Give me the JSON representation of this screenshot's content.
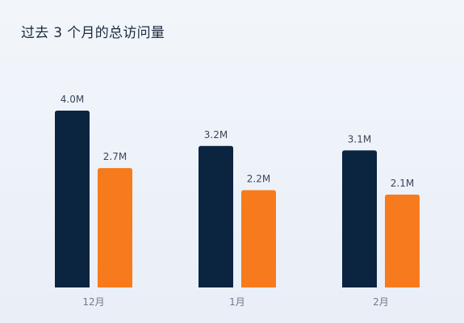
{
  "title": "过去 3 个月的总访问量",
  "colors": {
    "series_primary": "#0b2440",
    "series_secondary": "#f77b1c"
  },
  "chart_data": {
    "type": "bar",
    "categories": [
      "12月",
      "1月",
      "2月"
    ],
    "series": [
      {
        "values": [
          4.0,
          3.2,
          3.1
        ],
        "labels": [
          "4.0M",
          "3.2M",
          "3.1M"
        ]
      },
      {
        "values": [
          2.7,
          2.2,
          2.1
        ],
        "labels": [
          "2.7M",
          "2.2M",
          "2.1M"
        ]
      }
    ],
    "title": "过去 3 个月的总访问量",
    "xlabel": "",
    "ylabel": "",
    "ylim": [
      0,
      5
    ],
    "grid": false,
    "legend": "none"
  }
}
